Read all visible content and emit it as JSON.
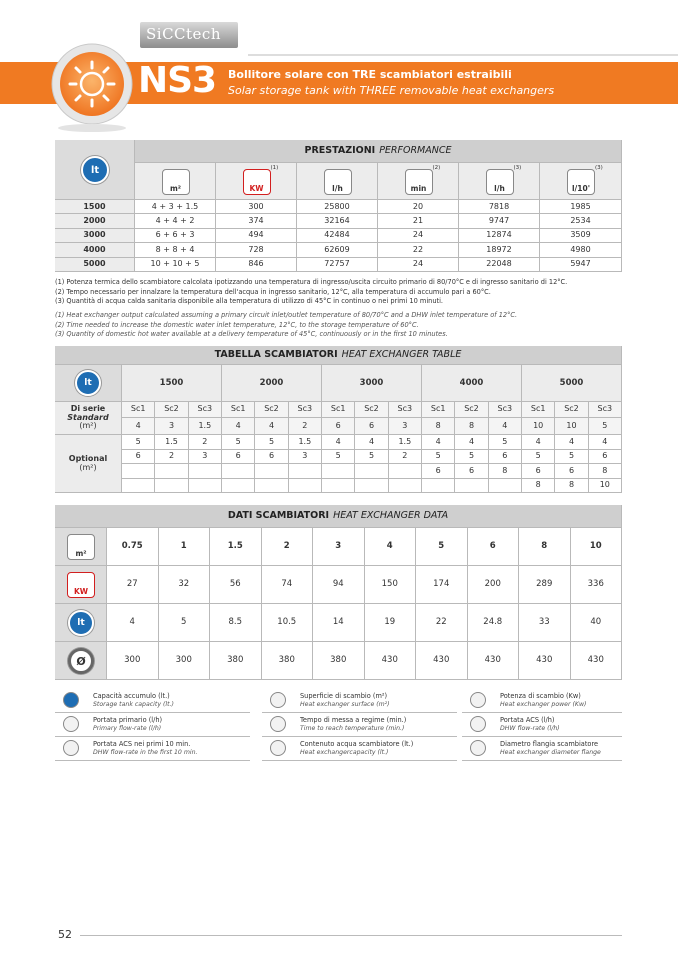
{
  "header": {
    "brand": "SiCCtech",
    "model": "NS3",
    "title_it": "Bollitore solare con TRE scambiatori estraibili",
    "title_en": "Solar storage tank with THREE removable heat exchangers"
  },
  "icons": {
    "tank": "lt",
    "surface": "m²",
    "power": "KW",
    "primary": "l/h",
    "time": "min",
    "dhw": "l/h",
    "dhw10": "l/10'"
  },
  "performance": {
    "title_it": "PRESTAZIONI",
    "title_en": "PERFORMANCE",
    "columns": [
      {
        "icon": "m²",
        "note": null
      },
      {
        "icon": "KW",
        "note": "(1)"
      },
      {
        "icon": "l/h",
        "note": null
      },
      {
        "icon": "min",
        "note": "(2)"
      },
      {
        "icon": "l/h",
        "note": "(3)"
      },
      {
        "icon": "l/10'",
        "note": "(3)"
      }
    ],
    "rows": [
      [
        1500,
        "4 + 3 + 1.5",
        300,
        25800,
        20,
        7818,
        1985
      ],
      [
        2000,
        "4 + 4 + 2",
        374,
        32164,
        21,
        9747,
        2534
      ],
      [
        3000,
        "6 + 6 + 3",
        494,
        42484,
        24,
        12874,
        3509
      ],
      [
        4000,
        "8 + 8 + 4",
        728,
        62609,
        22,
        18972,
        4980
      ],
      [
        5000,
        "10 + 10 + 5",
        846,
        72757,
        24,
        22048,
        5947
      ]
    ],
    "notes_it": [
      "(1) Potenza termica dello scambiatore calcolata ipotizzando una temperatura di ingresso/uscita circuito primario di 80/70°C e di ingresso sanitario di 12°C.",
      "(2) Tempo necessario per innalzare la temperatura dell'acqua in ingresso sanitario, 12°C, alla temperatura di accumulo pari a 60°C.",
      "(3) Quantità di acqua calda sanitaria disponibile alla temperatura di utilizzo di 45°C in continuo o nei primi 10 minuti."
    ],
    "notes_en": [
      "(1) Heat exchanger output calculated assuming a primary circuit inlet/outlet temperature of 80/70°C and a DHW inlet temperature of 12°C.",
      "(2) Time needed to increase the domestic water inlet temperature, 12°C, to the storage temperature of 60°C.",
      "(3) Quantity of domestic hot water available at a delivery temperature of 45°C, continuously or in the first 10 minutes."
    ]
  },
  "exchanger_table": {
    "title_it": "TABELLA SCAMBIATORI",
    "title_en": "HEAT EXCHANGER TABLE",
    "sizes": [
      1500,
      2000,
      3000,
      4000,
      5000
    ],
    "sc_labels": [
      "Sc1",
      "Sc2",
      "Sc3"
    ],
    "standard_label": [
      "Di serie",
      "Standard",
      "(m²)"
    ],
    "optional_label": [
      "Optional",
      "(m²)"
    ],
    "standard": [
      4,
      3,
      1.5,
      4,
      4,
      2,
      6,
      6,
      3,
      8,
      8,
      4,
      10,
      10,
      5
    ],
    "optional": [
      [
        5,
        1.5,
        2,
        5,
        5,
        1.5,
        4,
        4,
        1.5,
        4,
        4,
        5,
        4,
        4,
        4
      ],
      [
        6,
        2,
        3,
        6,
        6,
        3,
        5,
        5,
        2,
        5,
        5,
        6,
        5,
        5,
        6
      ],
      [
        null,
        null,
        null,
        null,
        null,
        null,
        null,
        null,
        null,
        6,
        6,
        8,
        6,
        6,
        8
      ],
      [
        null,
        null,
        null,
        null,
        null,
        null,
        null,
        null,
        null,
        null,
        null,
        null,
        8,
        8,
        10
      ]
    ]
  },
  "exchanger_data": {
    "title_it": "DATI SCAMBIATORI",
    "title_en": "HEAT EXCHANGER DATA",
    "row_icons": [
      "m²",
      "KW",
      "lt",
      "Ø"
    ],
    "surface": [
      0.75,
      1,
      1.5,
      2,
      3,
      4,
      5,
      6,
      8,
      10
    ],
    "power": [
      27,
      32,
      56,
      74,
      94,
      150,
      174,
      200,
      289,
      336
    ],
    "capacity": [
      4,
      5,
      8.5,
      10.5,
      14,
      19,
      22,
      24.8,
      33,
      40
    ],
    "flange": [
      300,
      300,
      380,
      380,
      380,
      430,
      430,
      430,
      430,
      430
    ]
  },
  "legend": [
    {
      "it": "Capacità accumulo (lt.)",
      "en": "Storage tank capacity (lt.)"
    },
    {
      "it": "Superficie di scambio (m²)",
      "en": "Heat exchanger surface (m²)"
    },
    {
      "it": "Potenza di scambio (Kw)",
      "en": "Heat exchanger power (Kw)"
    },
    {
      "it": "Portata primario (l/h)",
      "en": "Primary flow-rate (l/h)"
    },
    {
      "it": "Tempo di messa a regime (min.)",
      "en": "Time to reach temperature (min.)"
    },
    {
      "it": "Portata ACS (l/h)",
      "en": "DHW flow-rate (l/h)"
    },
    {
      "it": "Portata ACS nei primi 10 min.",
      "en": "DHW flow-rate in the first 10 min."
    },
    {
      "it": "Contenuto acqua scambiatore (lt.)",
      "en": "Heat exchangercapacity (lt.)"
    },
    {
      "it": "Diametro flangia scambiatore",
      "en": "Heat exchanger diameter flange"
    }
  ],
  "footer": {
    "page_number": "52"
  }
}
